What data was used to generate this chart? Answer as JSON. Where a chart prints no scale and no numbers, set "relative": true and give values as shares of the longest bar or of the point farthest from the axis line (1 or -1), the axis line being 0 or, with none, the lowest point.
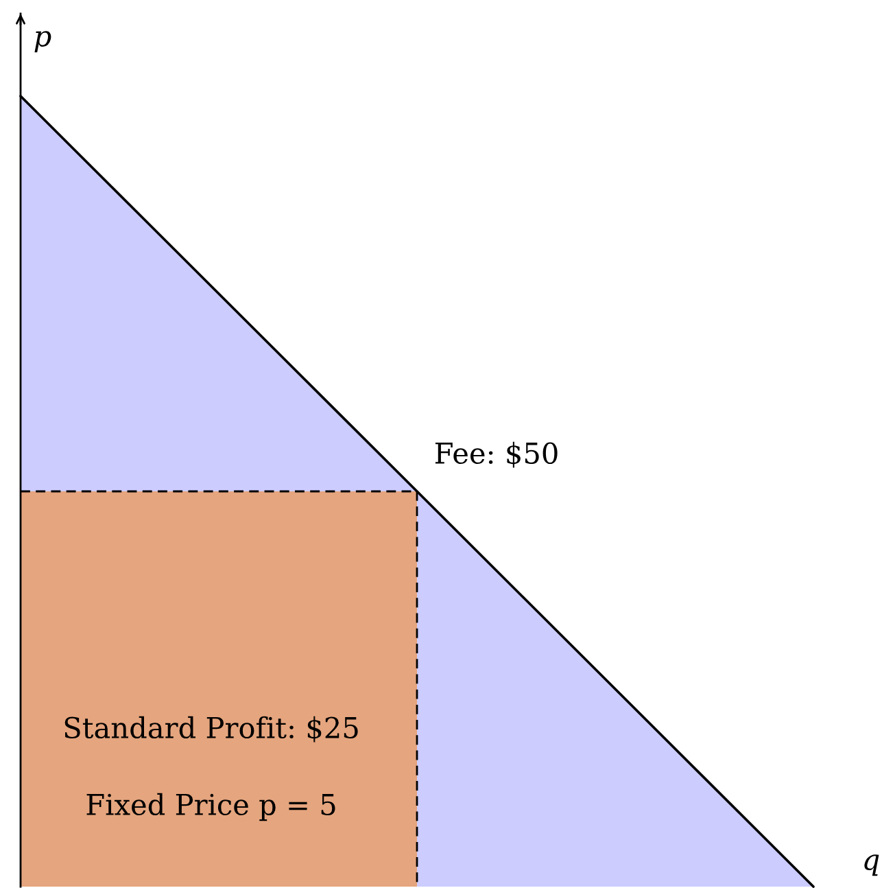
{
  "chart_data": {
    "type": "area",
    "relative": true,
    "xlabel": "q",
    "ylabel": "p",
    "categories": [
      null,
      null,
      null
    ],
    "series": [
      {
        "color": "#ccccff",
        "values": [
          1,
          0.5,
          0
        ],
        "line_style": "solid"
      },
      {
        "color": "#e5a57e",
        "values": [
          0.5,
          0.5,
          null
        ],
        "line_style": "dashed"
      }
    ],
    "annotations": [
      "Fee: $50",
      "Standard Profit: $25",
      "Fixed Price p = 5"
    ]
  }
}
